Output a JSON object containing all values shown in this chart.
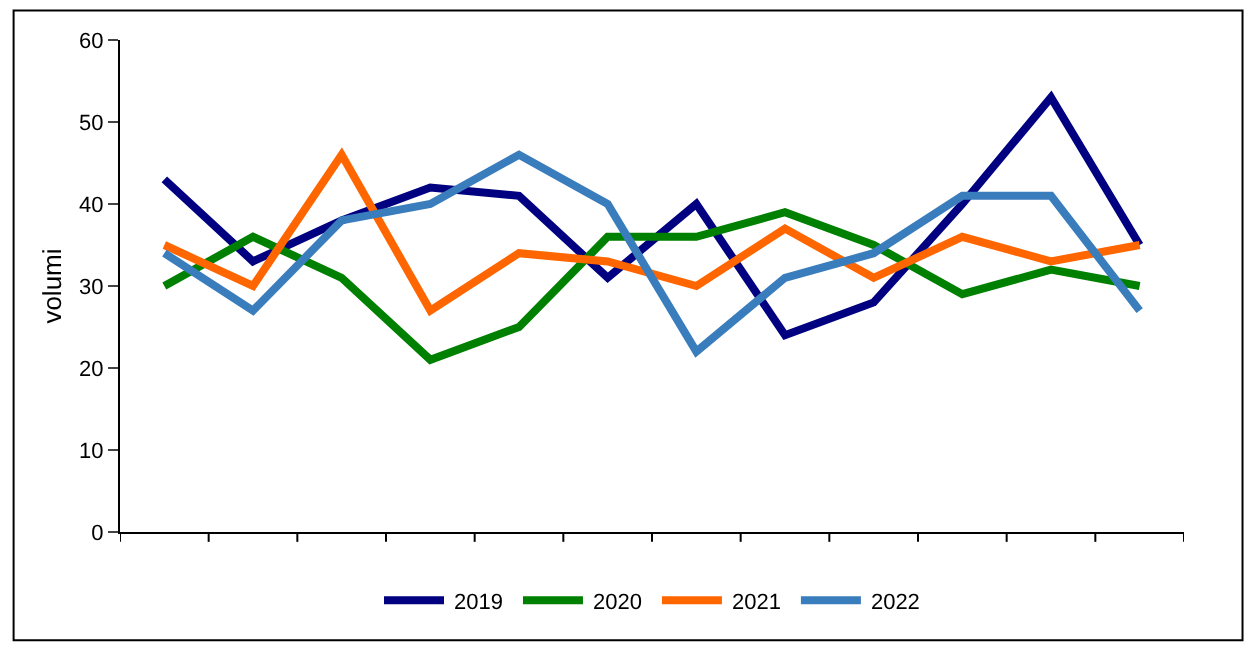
{
  "chart_data": {
    "type": "line",
    "ylabel": "volumi",
    "categories": [
      null,
      null,
      null,
      null,
      null,
      null,
      null,
      null,
      null,
      null,
      null,
      null
    ],
    "ylim": [
      0,
      60
    ],
    "yticks": [
      0,
      10,
      20,
      30,
      40,
      50,
      60
    ],
    "legend": "bottom",
    "marker": "none",
    "line_style": "solid",
    "series": [
      {
        "name": "2019",
        "color": "#000080",
        "values": [
          43,
          33,
          38,
          42,
          41,
          31,
          40,
          24,
          28,
          40,
          53,
          35
        ]
      },
      {
        "name": "2020",
        "color": "#008000",
        "values": [
          30,
          36,
          31,
          21,
          25,
          36,
          36,
          39,
          35,
          29,
          32,
          30
        ]
      },
      {
        "name": "2021",
        "color": "#ff6600",
        "values": [
          35,
          30,
          46,
          27,
          34,
          33,
          30,
          37,
          31,
          36,
          33,
          35
        ]
      },
      {
        "name": "2022",
        "color": "#3a7dbd",
        "values": [
          34,
          27,
          38,
          40,
          46,
          40,
          22,
          31,
          34,
          41,
          41,
          27
        ]
      }
    ]
  }
}
